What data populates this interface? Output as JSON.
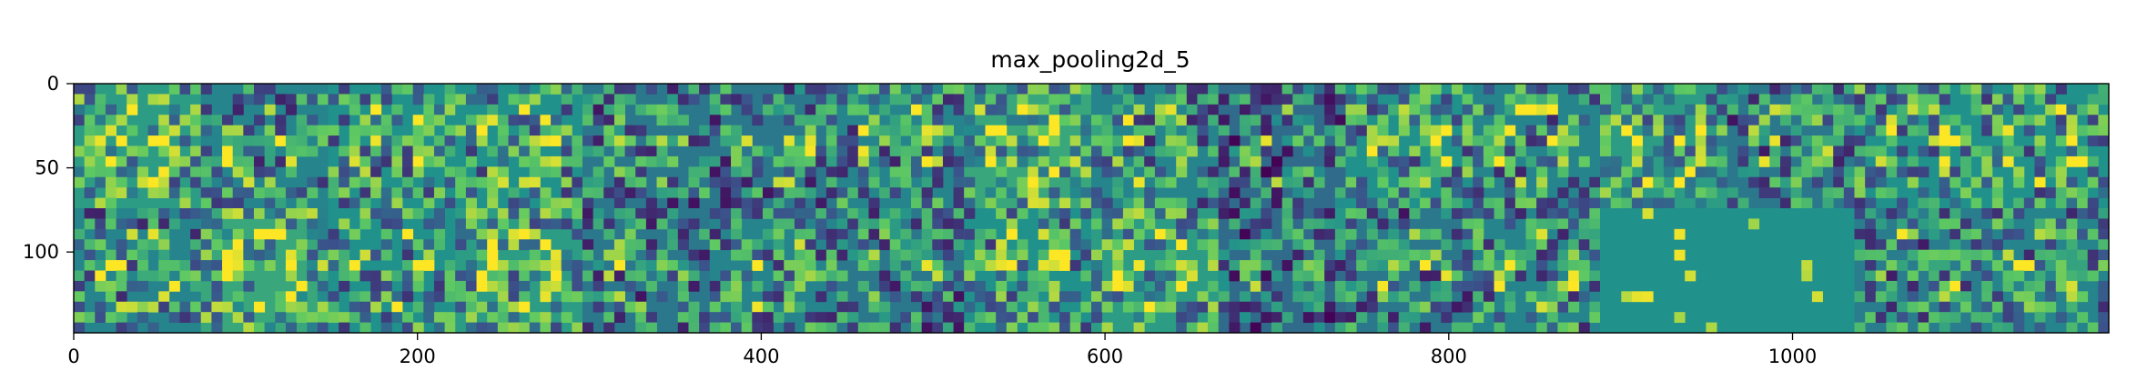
{
  "chart_data": {
    "type": "heatmap",
    "title": "max_pooling2d_5",
    "xlabel": "",
    "ylabel": "",
    "colormap": "viridis",
    "grid": false,
    "xlim": [
      0,
      1184
    ],
    "ylim": [
      148,
      0
    ],
    "image_size_data_units": {
      "width": 1184,
      "height": 148
    },
    "tile_grid": {
      "rows": 2,
      "cols": 16,
      "tile_size": 74
    },
    "x_ticks": [
      0,
      200,
      400,
      600,
      800,
      1000
    ],
    "x_tick_labels": [
      "0",
      "200",
      "400",
      "600",
      "800",
      "1000"
    ],
    "y_ticks": [
      0,
      50,
      100
    ],
    "y_tick_labels": [
      "0",
      "50",
      "100"
    ],
    "tile_mean_intensity": [
      [
        0.55,
        0.45,
        0.5,
        0.5,
        0.4,
        0.4,
        0.45,
        0.6,
        0.45,
        0.35,
        0.5,
        0.45,
        0.55,
        0.4,
        0.5,
        0.5
      ],
      [
        0.45,
        0.6,
        0.5,
        0.55,
        0.4,
        0.45,
        0.4,
        0.5,
        0.55,
        0.35,
        0.4,
        0.45,
        0.55,
        0.45,
        0.42,
        0.45
      ]
    ],
    "sparse_tiles": [
      [
        1,
        12
      ],
      [
        1,
        13
      ]
    ]
  },
  "colors": {
    "viridis_dark": "#440154",
    "viridis_blue": "#3b528b",
    "viridis_teal": "#21918c",
    "viridis_green": "#5ec962",
    "viridis_yellow": "#fde725",
    "axis": "#000000"
  }
}
